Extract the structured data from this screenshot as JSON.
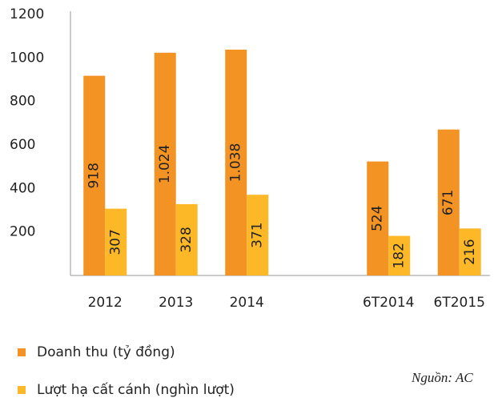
{
  "chart_data": {
    "type": "bar",
    "categories": [
      "2012",
      "2013",
      "2014",
      null,
      "6T2014",
      "6T2015"
    ],
    "series": [
      {
        "name": "Doanh thu (tỷ đồng)",
        "color": "#f39323",
        "values": [
          918,
          1024,
          1038,
          null,
          524,
          671
        ],
        "value_labels": [
          "918",
          "1.024",
          "1.038",
          null,
          "524",
          "671"
        ]
      },
      {
        "name": "Lượt hạ cất cánh (nghìn lượt)",
        "color": "#fdb827",
        "values": [
          307,
          328,
          371,
          null,
          182,
          216
        ]
      }
    ],
    "ylim": [
      0,
      1200
    ],
    "yticks": [
      200,
      400,
      600,
      800,
      1000,
      1200
    ],
    "grid": false,
    "source": "Nguồn: AC"
  }
}
